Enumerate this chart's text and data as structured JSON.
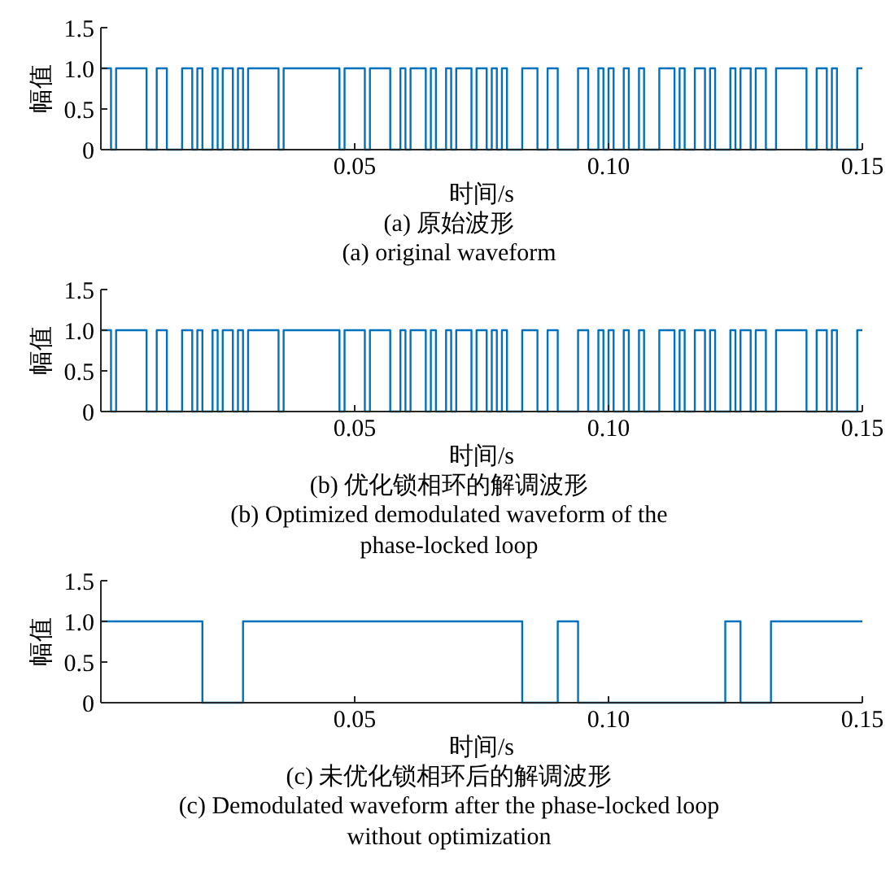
{
  "chart_data": [
    {
      "type": "step",
      "title": "(a) 原始波形",
      "subtitle": "(a) original waveform",
      "xlabel": "时间/s",
      "ylabel": "幅值",
      "xlim": [
        0,
        0.15
      ],
      "xticks": [
        {
          "value": 0.05,
          "label": "0.05"
        },
        {
          "value": 0.1,
          "label": "0.10"
        },
        {
          "value": 0.15,
          "label": "0.15"
        }
      ],
      "ylim": [
        0,
        1.5
      ],
      "yticks": [
        {
          "value": 0,
          "label": "0"
        },
        {
          "value": 0.5,
          "label": "0.5"
        },
        {
          "value": 1,
          "label": "1.0"
        },
        {
          "value": 1.5,
          "label": "1.5"
        }
      ],
      "grid": false,
      "series": [
        {
          "color": "#0072bd",
          "x": [
            0,
            0.002,
            0.003,
            0.009,
            0.011,
            0.013,
            0.016,
            0.018,
            0.019,
            0.02,
            0.022,
            0.023,
            0.024,
            0.026,
            0.027,
            0.028,
            0.029,
            0.035,
            0.036,
            0.047,
            0.048,
            0.052,
            0.053,
            0.057,
            0.059,
            0.06,
            0.061,
            0.064,
            0.065,
            0.066,
            0.068,
            0.069,
            0.07,
            0.073,
            0.074,
            0.076,
            0.077,
            0.078,
            0.079,
            0.08,
            0.083,
            0.086,
            0.088,
            0.09,
            0.094,
            0.096,
            0.098,
            0.099,
            0.1,
            0.101,
            0.103,
            0.104,
            0.106,
            0.107,
            0.11,
            0.113,
            0.114,
            0.115,
            0.117,
            0.119,
            0.12,
            0.121,
            0.124,
            0.125,
            0.126,
            0.128,
            0.129,
            0.131,
            0.133,
            0.139,
            0.141,
            0.143,
            0.144,
            0.145,
            0.149,
            0.15
          ],
          "values": [
            1,
            0,
            1,
            0,
            1,
            0,
            1,
            0,
            1,
            0,
            1,
            0,
            1,
            0,
            1,
            0,
            1,
            0,
            1,
            0,
            1,
            0,
            1,
            0,
            1,
            0,
            1,
            0,
            1,
            0,
            1,
            0,
            1,
            0,
            1,
            0,
            1,
            0,
            1,
            0,
            1,
            0,
            1,
            0,
            1,
            0,
            1,
            0,
            1,
            0,
            1,
            0,
            1,
            0,
            1,
            0,
            1,
            0,
            1,
            0,
            1,
            0,
            1,
            0,
            1,
            0,
            1,
            0,
            1,
            0,
            1,
            0,
            1,
            0,
            1,
            1
          ]
        }
      ]
    },
    {
      "type": "step",
      "title": "(b) 优化锁相环的解调波形",
      "subtitle": "(b) Optimized demodulated waveform of the phase-locked loop",
      "xlabel": "时间/s",
      "ylabel": "幅值",
      "xlim": [
        0,
        0.15
      ],
      "xticks": [
        {
          "value": 0.05,
          "label": "0.05"
        },
        {
          "value": 0.1,
          "label": "0.10"
        },
        {
          "value": 0.15,
          "label": "0.15"
        }
      ],
      "ylim": [
        0,
        1.5
      ],
      "yticks": [
        {
          "value": 0,
          "label": "0"
        },
        {
          "value": 0.5,
          "label": "0.5"
        },
        {
          "value": 1,
          "label": "1.0"
        },
        {
          "value": 1.5,
          "label": "1.5"
        }
      ],
      "grid": false,
      "series": [
        {
          "color": "#0072bd",
          "x": [
            0,
            0.002,
            0.003,
            0.009,
            0.011,
            0.013,
            0.016,
            0.018,
            0.019,
            0.02,
            0.022,
            0.023,
            0.024,
            0.026,
            0.027,
            0.028,
            0.029,
            0.035,
            0.036,
            0.047,
            0.048,
            0.052,
            0.053,
            0.057,
            0.059,
            0.06,
            0.061,
            0.064,
            0.065,
            0.066,
            0.068,
            0.069,
            0.07,
            0.073,
            0.074,
            0.076,
            0.077,
            0.078,
            0.079,
            0.08,
            0.083,
            0.086,
            0.088,
            0.09,
            0.094,
            0.096,
            0.098,
            0.099,
            0.1,
            0.101,
            0.103,
            0.104,
            0.106,
            0.107,
            0.11,
            0.113,
            0.114,
            0.115,
            0.117,
            0.119,
            0.12,
            0.121,
            0.124,
            0.125,
            0.126,
            0.128,
            0.129,
            0.131,
            0.133,
            0.139,
            0.141,
            0.143,
            0.144,
            0.145,
            0.149,
            0.15
          ],
          "values": [
            1,
            0,
            1,
            0,
            1,
            0,
            1,
            0,
            1,
            0,
            1,
            0,
            1,
            0,
            1,
            0,
            1,
            0,
            1,
            0,
            1,
            0,
            1,
            0,
            1,
            0,
            1,
            0,
            1,
            0,
            1,
            0,
            1,
            0,
            1,
            0,
            1,
            0,
            1,
            0,
            1,
            0,
            1,
            0,
            1,
            0,
            1,
            0,
            1,
            0,
            1,
            0,
            1,
            0,
            1,
            0,
            1,
            0,
            1,
            0,
            1,
            0,
            1,
            0,
            1,
            0,
            1,
            0,
            1,
            0,
            1,
            0,
            1,
            0,
            1,
            1
          ]
        }
      ]
    },
    {
      "type": "step",
      "title": "(c) 未优化锁相环后的解调波形",
      "subtitle": "(c) Demodulated waveform after the phase-locked loop without optimization",
      "xlabel": "时间/s",
      "ylabel": "幅值",
      "xlim": [
        0,
        0.15
      ],
      "xticks": [
        {
          "value": 0.05,
          "label": "0.05"
        },
        {
          "value": 0.1,
          "label": "0.10"
        },
        {
          "value": 0.15,
          "label": "0.15"
        }
      ],
      "ylim": [
        0,
        1.5
      ],
      "yticks": [
        {
          "value": 0,
          "label": "0"
        },
        {
          "value": 0.5,
          "label": "0.5"
        },
        {
          "value": 1,
          "label": "1.0"
        },
        {
          "value": 1.5,
          "label": "1.5"
        }
      ],
      "grid": false,
      "series": [
        {
          "color": "#0072bd",
          "x": [
            0,
            0.02,
            0.028,
            0.083,
            0.09,
            0.094,
            0.123,
            0.126,
            0.132,
            0.15
          ],
          "values": [
            1,
            0,
            1,
            0,
            1,
            0,
            1,
            0,
            1,
            1
          ]
        }
      ]
    }
  ]
}
